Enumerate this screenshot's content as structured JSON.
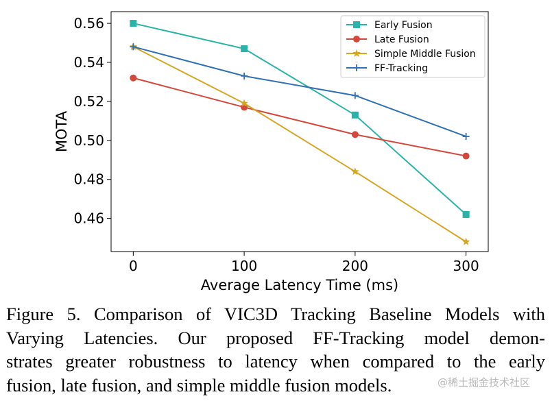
{
  "chart_data": {
    "type": "line",
    "title": "",
    "xlabel": "Average Latency Time (ms)",
    "ylabel": "MOTA",
    "x": [
      0,
      100,
      200,
      300
    ],
    "xticks": [
      "0",
      "100",
      "200",
      "300"
    ],
    "yticks": [
      "0.46",
      "0.48",
      "0.50",
      "0.52",
      "0.54",
      "0.56"
    ],
    "ytick_values": [
      0.46,
      0.48,
      0.5,
      0.52,
      0.54,
      0.56
    ],
    "xlim": [
      -20,
      320
    ],
    "ylim": [
      0.443,
      0.566
    ],
    "grid": false,
    "legend_position": "top-right",
    "series": [
      {
        "name": "Early Fusion",
        "values": [
          0.56,
          0.547,
          0.513,
          0.462
        ],
        "color": "#2ab3a8",
        "marker": "square"
      },
      {
        "name": "Late Fusion",
        "values": [
          0.532,
          0.517,
          0.503,
          0.492
        ],
        "color": "#d4473b",
        "marker": "circle"
      },
      {
        "name": "Simple Middle Fusion",
        "values": [
          0.548,
          0.519,
          0.484,
          0.448
        ],
        "color": "#d6a521",
        "marker": "star"
      },
      {
        "name": "FF-Tracking",
        "values": [
          0.548,
          0.533,
          0.523,
          0.502
        ],
        "color": "#2f6fb3",
        "marker": "plus"
      }
    ]
  },
  "caption": {
    "lines": [
      "Figure 5. Comparison of VIC3D Tracking Baseline Models with",
      "Varying Latencies.  Our proposed FF-Tracking model demon-",
      "strates greater robustness to latency when compared to the early",
      "fusion, late fusion, and simple middle fusion models."
    ]
  },
  "watermark": "@稀土掘金技术社区"
}
